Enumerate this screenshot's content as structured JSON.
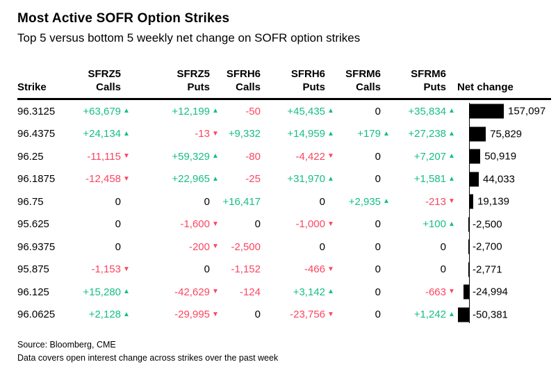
{
  "title": "Most Active SOFR Option Strikes",
  "subtitle": "Top 5 versus bottom 5 weekly net change on SOFR option strikes",
  "footer": {
    "source": "Source: Bloomberg, CME",
    "note": "Data covers open interest change across strikes over the past week"
  },
  "colors": {
    "positive": "#16BD89",
    "negative": "#FB4560",
    "bar": "#000000",
    "text": "#000000"
  },
  "table": {
    "columns": [
      {
        "line1": "",
        "line2": "Strike"
      },
      {
        "line1": "SFRZ5",
        "line2": "Calls"
      },
      {
        "line1": "SFRZ5",
        "line2": "Puts"
      },
      {
        "line1": "SFRH6",
        "line2": "Calls"
      },
      {
        "line1": "SFRH6",
        "line2": "Puts"
      },
      {
        "line1": "SFRM6",
        "line2": "Calls"
      },
      {
        "line1": "SFRM6",
        "line2": "Puts"
      },
      {
        "line1": "",
        "line2": "Net change"
      }
    ],
    "rows": [
      {
        "strike": "96.3125",
        "cells": [
          {
            "t": "+63,679",
            "a": "u"
          },
          {
            "t": "+12,199",
            "a": "u"
          },
          {
            "t": "-50",
            "a": ""
          },
          {
            "t": "+45,435",
            "a": "u"
          },
          {
            "t": "0",
            "a": ""
          },
          {
            "t": "+35,834",
            "a": "u"
          }
        ],
        "net": 157097,
        "net_label": "157,097"
      },
      {
        "strike": "96.4375",
        "cells": [
          {
            "t": "+24,134",
            "a": "u"
          },
          {
            "t": "-13",
            "a": "d"
          },
          {
            "t": "+9,332",
            "a": ""
          },
          {
            "t": "+14,959",
            "a": "u"
          },
          {
            "t": "+179",
            "a": "u"
          },
          {
            "t": "+27,238",
            "a": "u"
          }
        ],
        "net": 75829,
        "net_label": "75,829"
      },
      {
        "strike": "96.25",
        "cells": [
          {
            "t": "-11,115",
            "a": "d"
          },
          {
            "t": "+59,329",
            "a": "u"
          },
          {
            "t": "-80",
            "a": ""
          },
          {
            "t": "-4,422",
            "a": "d"
          },
          {
            "t": "0",
            "a": ""
          },
          {
            "t": "+7,207",
            "a": "u"
          }
        ],
        "net": 50919,
        "net_label": "50,919"
      },
      {
        "strike": "96.1875",
        "cells": [
          {
            "t": "-12,458",
            "a": "d"
          },
          {
            "t": "+22,965",
            "a": "u"
          },
          {
            "t": "-25",
            "a": ""
          },
          {
            "t": "+31,970",
            "a": "u"
          },
          {
            "t": "0",
            "a": ""
          },
          {
            "t": "+1,581",
            "a": "u"
          }
        ],
        "net": 44033,
        "net_label": "44,033"
      },
      {
        "strike": "96.75",
        "cells": [
          {
            "t": "0",
            "a": ""
          },
          {
            "t": "0",
            "a": ""
          },
          {
            "t": "+16,417",
            "a": ""
          },
          {
            "t": "0",
            "a": ""
          },
          {
            "t": "+2,935",
            "a": "u"
          },
          {
            "t": "-213",
            "a": "d"
          }
        ],
        "net": 19139,
        "net_label": "19,139"
      },
      {
        "strike": "95.625",
        "cells": [
          {
            "t": "0",
            "a": ""
          },
          {
            "t": "-1,600",
            "a": "d"
          },
          {
            "t": "0",
            "a": ""
          },
          {
            "t": "-1,000",
            "a": "d"
          },
          {
            "t": "0",
            "a": ""
          },
          {
            "t": "+100",
            "a": "u"
          }
        ],
        "net": -2500,
        "net_label": "-2,500"
      },
      {
        "strike": "96.9375",
        "cells": [
          {
            "t": "0",
            "a": ""
          },
          {
            "t": "-200",
            "a": "d"
          },
          {
            "t": "-2,500",
            "a": ""
          },
          {
            "t": "0",
            "a": ""
          },
          {
            "t": "0",
            "a": ""
          },
          {
            "t": "0",
            "a": ""
          }
        ],
        "net": -2700,
        "net_label": "-2,700"
      },
      {
        "strike": "95.875",
        "cells": [
          {
            "t": "-1,153",
            "a": "d"
          },
          {
            "t": "0",
            "a": ""
          },
          {
            "t": "-1,152",
            "a": ""
          },
          {
            "t": "-466",
            "a": "d"
          },
          {
            "t": "0",
            "a": ""
          },
          {
            "t": "0",
            "a": ""
          }
        ],
        "net": -2771,
        "net_label": "-2,771"
      },
      {
        "strike": "96.125",
        "cells": [
          {
            "t": "+15,280",
            "a": "u"
          },
          {
            "t": "-42,629",
            "a": "d"
          },
          {
            "t": "-124",
            "a": ""
          },
          {
            "t": "+3,142",
            "a": "u"
          },
          {
            "t": "0",
            "a": ""
          },
          {
            "t": "-663",
            "a": "d"
          }
        ],
        "net": -24994,
        "net_label": "-24,994"
      },
      {
        "strike": "96.0625",
        "cells": [
          {
            "t": "+2,128",
            "a": "u"
          },
          {
            "t": "-29,995",
            "a": "d"
          },
          {
            "t": "0",
            "a": ""
          },
          {
            "t": "-23,756",
            "a": "d"
          },
          {
            "t": "0",
            "a": ""
          },
          {
            "t": "+1,242",
            "a": "u"
          }
        ],
        "net": -50381,
        "net_label": "-50,381"
      }
    ]
  },
  "chart_data": {
    "type": "bar",
    "orientation": "horizontal",
    "title": "Most Active SOFR Option Strikes",
    "subtitle": "Top 5 versus bottom 5 weekly net change on SOFR option strikes",
    "series_label": "Net change",
    "categories": [
      "96.3125",
      "96.4375",
      "96.25",
      "96.1875",
      "96.75",
      "95.625",
      "96.9375",
      "95.875",
      "96.125",
      "96.0625"
    ],
    "values": [
      157097,
      75829,
      50919,
      44033,
      19139,
      -2500,
      -2700,
      -2771,
      -24994,
      -50381
    ],
    "xlim": [
      -60000,
      165000
    ],
    "grid": false,
    "legend": false,
    "bar_color": "#000000",
    "source": "Bloomberg, CME"
  }
}
